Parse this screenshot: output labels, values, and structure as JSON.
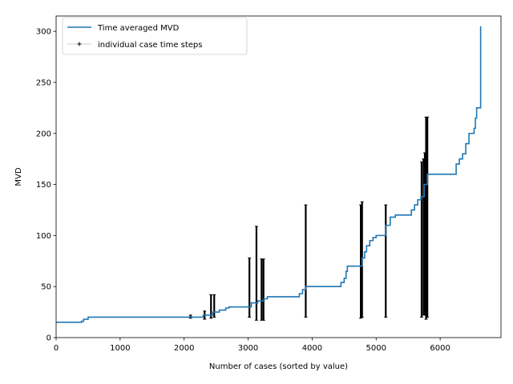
{
  "chart_data": {
    "type": "line",
    "xlabel": "Number of cases (sorted by value)",
    "ylabel": "MVD",
    "xlim": [
      0,
      6950
    ],
    "ylim": [
      0,
      315
    ],
    "x_ticks": [
      0,
      1000,
      2000,
      3000,
      4000,
      5000,
      6000
    ],
    "y_ticks": [
      0,
      50,
      100,
      150,
      200,
      250,
      300
    ],
    "grid": false,
    "legend_position": "top-left",
    "colors": {
      "line": "#1f77b4",
      "steps": "#000000"
    },
    "series": [
      {
        "name": "Time averaged MVD",
        "style": "step-line",
        "points": [
          [
            0,
            15
          ],
          [
            300,
            15
          ],
          [
            400,
            16
          ],
          [
            430,
            18
          ],
          [
            500,
            20
          ],
          [
            1000,
            20
          ],
          [
            2000,
            20
          ],
          [
            2100,
            20
          ],
          [
            2300,
            22
          ],
          [
            2450,
            25
          ],
          [
            2550,
            27
          ],
          [
            2650,
            29
          ],
          [
            2700,
            30
          ],
          [
            3000,
            30
          ],
          [
            3050,
            34
          ],
          [
            3150,
            36
          ],
          [
            3250,
            38
          ],
          [
            3300,
            40
          ],
          [
            3700,
            40
          ],
          [
            3800,
            43
          ],
          [
            3850,
            47
          ],
          [
            3900,
            50
          ],
          [
            4000,
            50
          ],
          [
            4300,
            50
          ],
          [
            4450,
            54
          ],
          [
            4500,
            58
          ],
          [
            4530,
            65
          ],
          [
            4550,
            70
          ],
          [
            4750,
            70
          ],
          [
            4780,
            78
          ],
          [
            4820,
            84
          ],
          [
            4850,
            90
          ],
          [
            4900,
            95
          ],
          [
            4950,
            98
          ],
          [
            5000,
            100
          ],
          [
            5100,
            100
          ],
          [
            5150,
            110
          ],
          [
            5220,
            118
          ],
          [
            5300,
            120
          ],
          [
            5400,
            120
          ],
          [
            5500,
            120
          ],
          [
            5550,
            125
          ],
          [
            5600,
            130
          ],
          [
            5650,
            135
          ],
          [
            5700,
            138
          ],
          [
            5750,
            150
          ],
          [
            5800,
            160
          ],
          [
            6000,
            160
          ],
          [
            6200,
            160
          ],
          [
            6250,
            170
          ],
          [
            6300,
            175
          ],
          [
            6350,
            180
          ],
          [
            6400,
            190
          ],
          [
            6450,
            200
          ],
          [
            6500,
            200
          ],
          [
            6530,
            205
          ],
          [
            6550,
            215
          ],
          [
            6570,
            225
          ],
          [
            6600,
            225
          ],
          [
            6630,
            225
          ],
          [
            6632,
            305
          ]
        ]
      },
      {
        "name": "individual case time steps",
        "style": "vertical-range",
        "ranges": [
          [
            2100,
            19,
            22
          ],
          [
            2320,
            18,
            26
          ],
          [
            2420,
            19,
            42
          ],
          [
            2470,
            20,
            42
          ],
          [
            3020,
            20,
            78
          ],
          [
            3130,
            17,
            109
          ],
          [
            3210,
            17,
            77
          ],
          [
            3240,
            17,
            77
          ],
          [
            3900,
            20,
            130
          ],
          [
            4760,
            19,
            130
          ],
          [
            4780,
            20,
            133
          ],
          [
            5150,
            20,
            130
          ],
          [
            5710,
            20,
            172
          ],
          [
            5740,
            22,
            175
          ],
          [
            5760,
            22,
            181
          ],
          [
            5780,
            18,
            216
          ],
          [
            5800,
            20,
            216
          ]
        ]
      }
    ]
  }
}
